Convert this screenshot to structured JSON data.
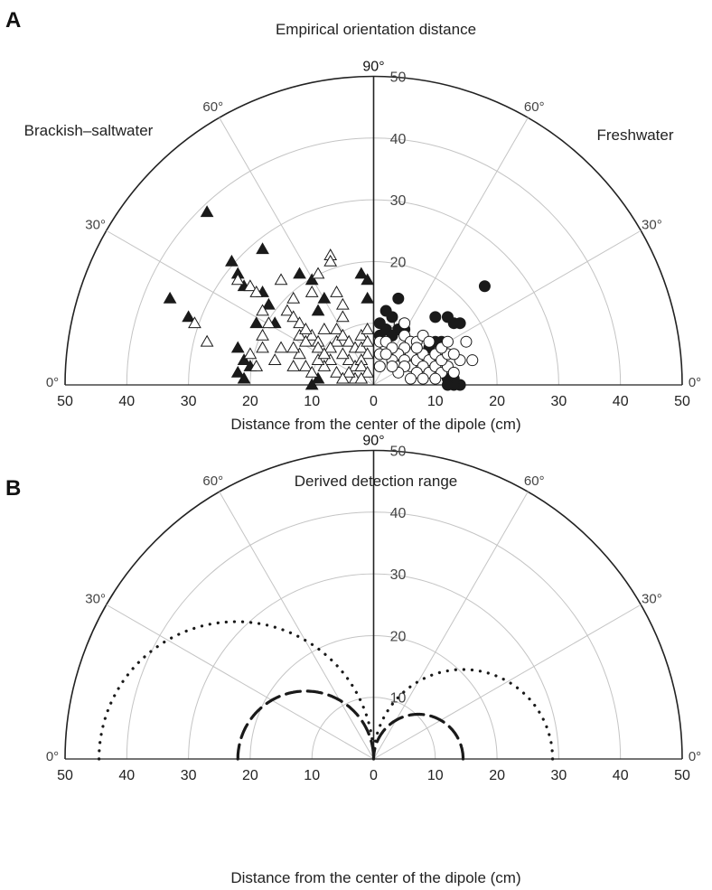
{
  "chart_data": [
    {
      "panel": "A",
      "type": "scatter",
      "title": "Empirical orientation distance",
      "xlabel": "Distance from the center of the dipole (cm)",
      "coordinate_system": "polar (semicircle)",
      "radial_range": [
        0,
        50
      ],
      "radial_ticks": [
        10,
        20,
        30,
        40,
        50
      ],
      "x_tick_labels": [
        "50",
        "40",
        "30",
        "20",
        "10",
        "0",
        "10",
        "20",
        "30",
        "40",
        "50"
      ],
      "angle_labels": {
        "left": [
          "0°",
          "30°",
          "60°"
        ],
        "top": "90°",
        "right": [
          "60°",
          "30°",
          "0°"
        ]
      },
      "region_labels": {
        "left": "Brackish–saltwater",
        "right": "Freshwater"
      },
      "series": [
        {
          "marker": "filled-triangle",
          "side": "left",
          "points": [
            [
              27,
              28
            ],
            [
              33,
              14
            ],
            [
              30,
              11
            ],
            [
              23,
              20
            ],
            [
              18,
              22
            ],
            [
              22,
              18
            ],
            [
              21,
              16
            ],
            [
              18,
              15
            ],
            [
              17,
              13
            ],
            [
              12,
              18
            ],
            [
              16,
              10
            ],
            [
              10,
              17
            ],
            [
              8,
              14
            ],
            [
              2,
              18
            ],
            [
              1,
              17
            ],
            [
              1,
              14
            ],
            [
              9,
              12
            ],
            [
              19,
              10
            ],
            [
              22,
              6
            ],
            [
              21,
              4
            ],
            [
              20,
              3
            ],
            [
              22,
              2
            ],
            [
              21,
              1
            ],
            [
              9,
              1
            ],
            [
              10,
              0
            ]
          ]
        },
        {
          "marker": "open-triangle",
          "side": "left",
          "points": [
            [
              29,
              10
            ],
            [
              27,
              7
            ],
            [
              22,
              17
            ],
            [
              20,
              16
            ],
            [
              19,
              15
            ],
            [
              18,
              12
            ],
            [
              17,
              10
            ],
            [
              15,
              17
            ],
            [
              13,
              14
            ],
            [
              14,
              12
            ],
            [
              13,
              11
            ],
            [
              12,
              10
            ],
            [
              12,
              8
            ],
            [
              18,
              8
            ],
            [
              18,
              6
            ],
            [
              20,
              5
            ],
            [
              19,
              3
            ],
            [
              16,
              4
            ],
            [
              13,
              3
            ],
            [
              7,
              21
            ],
            [
              7,
              20
            ],
            [
              9,
              18
            ],
            [
              6,
              15
            ],
            [
              10,
              15
            ],
            [
              5,
              13
            ],
            [
              5,
              11
            ],
            [
              8,
              9
            ],
            [
              10,
              8
            ],
            [
              9,
              7
            ],
            [
              9,
              6
            ],
            [
              11,
              7
            ],
            [
              6,
              9
            ],
            [
              6,
              7
            ],
            [
              5,
              8
            ],
            [
              4,
              7
            ],
            [
              3,
              6
            ],
            [
              4,
              4
            ],
            [
              3,
              3
            ],
            [
              2,
              8
            ],
            [
              2,
              6
            ],
            [
              1,
              9
            ],
            [
              1,
              7
            ],
            [
              1,
              5
            ],
            [
              2,
              4
            ],
            [
              2,
              3
            ],
            [
              1,
              2
            ],
            [
              5,
              5
            ],
            [
              7,
              4
            ],
            [
              8,
              3
            ],
            [
              6,
              2
            ],
            [
              9,
              4
            ],
            [
              11,
              3
            ],
            [
              12,
              5
            ],
            [
              3,
              1
            ],
            [
              4,
              2
            ],
            [
              5,
              1
            ],
            [
              7,
              6
            ],
            [
              10,
              2
            ],
            [
              8,
              5
            ],
            [
              13,
              6
            ],
            [
              2,
              1
            ],
            [
              11,
              9
            ],
            [
              15,
              6
            ]
          ]
        },
        {
          "marker": "filled-circle",
          "side": "right",
          "points": [
            [
              2,
              12
            ],
            [
              4,
              14
            ],
            [
              3,
              11
            ],
            [
              4,
              9
            ],
            [
              1,
              10
            ],
            [
              10,
              11
            ],
            [
              13,
              10
            ],
            [
              12,
              11
            ],
            [
              14,
              10
            ],
            [
              10,
              7
            ],
            [
              11,
              7
            ],
            [
              9,
              6
            ],
            [
              18,
              16
            ],
            [
              12,
              1
            ],
            [
              13,
              1
            ],
            [
              14,
              0
            ],
            [
              13,
              0
            ],
            [
              12,
              0
            ],
            [
              1,
              8
            ],
            [
              2,
              9
            ],
            [
              5,
              9
            ],
            [
              3,
              8
            ]
          ]
        },
        {
          "marker": "open-circle",
          "side": "right",
          "points": [
            [
              5,
              10
            ],
            [
              5,
              8
            ],
            [
              6,
              7
            ],
            [
              7,
              7
            ],
            [
              8,
              8
            ],
            [
              6,
              5
            ],
            [
              5,
              6
            ],
            [
              4,
              5
            ],
            [
              3,
              4
            ],
            [
              2,
              6
            ],
            [
              1,
              7
            ],
            [
              2,
              7
            ],
            [
              3,
              6
            ],
            [
              1,
              5
            ],
            [
              2,
              5
            ],
            [
              4,
              3
            ],
            [
              5,
              4
            ],
            [
              6,
              3
            ],
            [
              7,
              4
            ],
            [
              8,
              5
            ],
            [
              9,
              4
            ],
            [
              10,
              5
            ],
            [
              8,
              3
            ],
            [
              9,
              2
            ],
            [
              10,
              3
            ],
            [
              11,
              2
            ],
            [
              12,
              3
            ],
            [
              13,
              2
            ],
            [
              11,
              4
            ],
            [
              12,
              5
            ],
            [
              7,
              2
            ],
            [
              6,
              1
            ],
            [
              8,
              1
            ],
            [
              10,
              1
            ],
            [
              15,
              7
            ],
            [
              16,
              4
            ],
            [
              5,
              3
            ],
            [
              4,
              2
            ],
            [
              7,
              6
            ],
            [
              9,
              7
            ],
            [
              11,
              6
            ],
            [
              14,
              4
            ],
            [
              3,
              3
            ],
            [
              1,
              3
            ],
            [
              12,
              7
            ],
            [
              13,
              5
            ]
          ]
        }
      ]
    },
    {
      "panel": "B",
      "type": "line",
      "title": "Derived detection range",
      "xlabel": "Distance from the center of the dipole (cm)",
      "coordinate_system": "polar (semicircle)",
      "radial_range": [
        0,
        50
      ],
      "radial_ticks": [
        10,
        20,
        30,
        40,
        50
      ],
      "x_tick_labels": [
        "50",
        "40",
        "30",
        "20",
        "10",
        "0",
        "10",
        "20",
        "30",
        "40",
        "50"
      ],
      "angle_labels": {
        "left": [
          "0°",
          "30°",
          "60°"
        ],
        "top": "90°",
        "right": [
          "60°",
          "30°",
          "0°"
        ]
      },
      "series": [
        {
          "style": "dotted",
          "side": "left",
          "shape": "lobe",
          "max_distance": 44.5
        },
        {
          "style": "dotted",
          "side": "right",
          "shape": "lobe",
          "max_distance": 29
        },
        {
          "style": "dashed",
          "side": "left",
          "shape": "lobe",
          "max_distance": 22
        },
        {
          "style": "dashed",
          "side": "right",
          "shape": "lobe",
          "max_distance": 14.5
        }
      ]
    }
  ]
}
